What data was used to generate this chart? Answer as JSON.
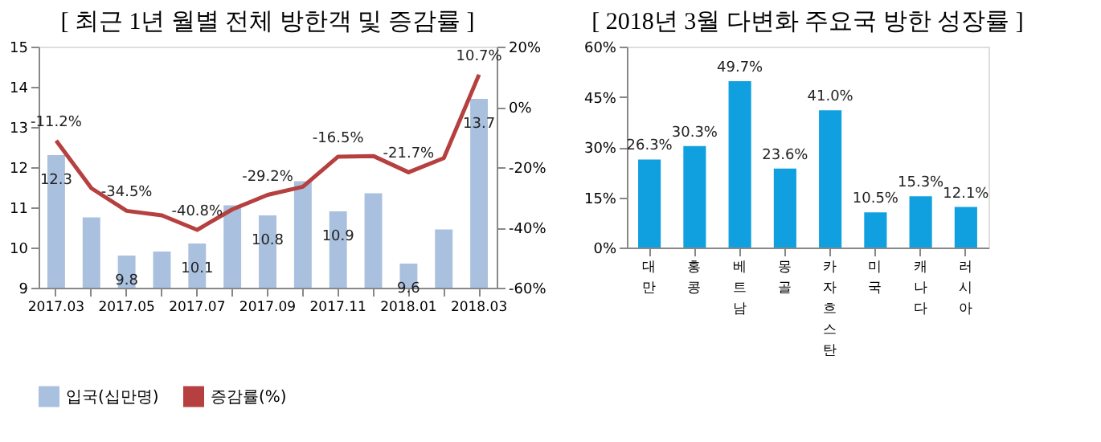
{
  "chart_data": [
    {
      "type": "bar",
      "title": "[ 최근 1년 월별 전체 방한객 및 증감률 ]",
      "categories": [
        "2017.03",
        null,
        "2017.05",
        null,
        "2017.07",
        null,
        "2017.09",
        null,
        "2017.11",
        null,
        "2018.01",
        null,
        "2018.03"
      ],
      "series": [
        {
          "name": "입국(십만명)",
          "type": "bar",
          "color": "#a9c0de",
          "values": [
            12.3,
            10.75,
            9.8,
            9.9,
            10.1,
            11.05,
            10.8,
            11.65,
            10.9,
            11.35,
            9.6,
            10.45,
            13.7
          ],
          "value_labels": [
            "12.3",
            null,
            "9.8",
            null,
            "10.1",
            null,
            "10.8",
            null,
            "10.9",
            null,
            "9.6",
            null,
            "13.7"
          ]
        },
        {
          "name": "증감률(%)",
          "type": "line",
          "axis": "y2",
          "color": "#b5403f",
          "values": [
            -11.2,
            -27,
            -34.5,
            -36,
            -40.8,
            -34,
            -29.2,
            -26.5,
            -16.5,
            -16.3,
            -21.7,
            -17,
            10.7
          ],
          "value_labels": [
            "-11.2%",
            null,
            "-34.5%",
            null,
            "-40.8%",
            null,
            "-29.2%",
            null,
            "-16.5%",
            null,
            "-21.7%",
            null,
            "10.7%"
          ]
        }
      ],
      "ylim": [
        9,
        15
      ],
      "yticks": [
        9,
        10,
        11,
        12,
        13,
        14,
        15
      ],
      "y2lim": [
        -60,
        20
      ],
      "y2ticks": [
        {
          "value": -60,
          "label": "-60%"
        },
        {
          "value": -40,
          "label": "-40%"
        },
        {
          "value": -20,
          "label": "-20%"
        },
        {
          "value": 0,
          "label": "0%"
        },
        {
          "value": 20,
          "label": "20%"
        }
      ],
      "legend": "bottom"
    },
    {
      "type": "bar",
      "title": "[ 2018년 3월 다변화 주요국 방한 성장률 ]",
      "categories": [
        "대만",
        "홍콩",
        "베트남",
        "몽골",
        "카자흐스탄",
        "미국",
        "캐나다",
        "러시아"
      ],
      "values": [
        26.3,
        30.3,
        49.7,
        23.6,
        41.0,
        10.5,
        15.3,
        12.1
      ],
      "color": "#10a0e0",
      "value_labels": [
        "26.3%",
        "30.3%",
        "49.7%",
        "23.6%",
        "41.0%",
        "10.5%",
        "15.3%",
        "12.1%"
      ],
      "ylim": [
        0,
        60
      ],
      "yticks": [
        {
          "value": 0,
          "label": "0%"
        },
        {
          "value": 15,
          "label": "15%"
        },
        {
          "value": 30,
          "label": "30%"
        },
        {
          "value": 45,
          "label": "45%"
        },
        {
          "value": 60,
          "label": "60%"
        }
      ]
    }
  ]
}
